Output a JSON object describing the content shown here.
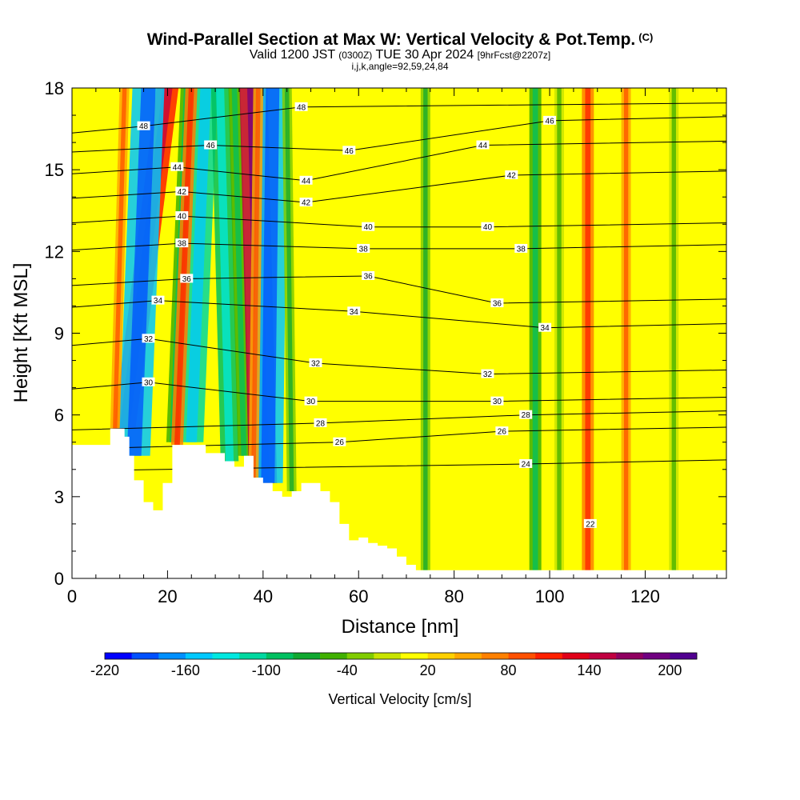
{
  "title": {
    "main": "Wind-Parallel Section at Max W: Vertical Velocity & Pot.Temp.",
    "mark": "(C)",
    "valid_prefix": "Valid 1200 JST",
    "valid_utc": "(0300Z)",
    "valid_date": "TUE 30 Apr 2024",
    "forecast": "[9hrFcst@2207z]",
    "indices": "i,j,k,angle=92,59,24,84"
  },
  "chart_data": {
    "type": "heatmap",
    "xlabel": "Distance [nm]",
    "ylabel": "Height [Kft MSL]",
    "xlim": [
      0,
      137
    ],
    "ylim": [
      0,
      18
    ],
    "xticks": [
      0,
      20,
      40,
      60,
      80,
      100,
      120
    ],
    "yticks": [
      0,
      3,
      6,
      9,
      12,
      15,
      18
    ],
    "colorbar": {
      "label": "Vertical Velocity [cm/s]",
      "range": [
        -220,
        220
      ],
      "step": 20,
      "tick_labels": [
        -220,
        -160,
        -100,
        -40,
        20,
        80,
        140,
        200
      ],
      "colors": [
        "#0000ff",
        "#0050ff",
        "#0090ff",
        "#00c8ff",
        "#00e8e0",
        "#00d8a0",
        "#00c060",
        "#10a830",
        "#40b000",
        "#80cc00",
        "#c8e400",
        "#ffff00",
        "#ffd000",
        "#ffa800",
        "#ff8000",
        "#ff5000",
        "#ff2000",
        "#e00018",
        "#c00040",
        "#900060",
        "#700080",
        "#500090"
      ]
    },
    "terrain_kft": [
      [
        0,
        4.9
      ],
      [
        7,
        4.9
      ],
      [
        8,
        5.5
      ],
      [
        10,
        5.5
      ],
      [
        11,
        5.2
      ],
      [
        12,
        4.5
      ],
      [
        13,
        3.6
      ],
      [
        15,
        2.8
      ],
      [
        17,
        2.5
      ],
      [
        19,
        3.5
      ],
      [
        21,
        4.9
      ],
      [
        26,
        4.9
      ],
      [
        28,
        4.6
      ],
      [
        30,
        4.6
      ],
      [
        32,
        4.3
      ],
      [
        34,
        4.1
      ],
      [
        36,
        4.5
      ],
      [
        38,
        3.7
      ],
      [
        40,
        3.5
      ],
      [
        42,
        3.2
      ],
      [
        44,
        3.0
      ],
      [
        46,
        3.2
      ],
      [
        48,
        3.5
      ],
      [
        50,
        3.5
      ],
      [
        52,
        3.2
      ],
      [
        54,
        2.8
      ],
      [
        56,
        2.0
      ],
      [
        58,
        1.4
      ],
      [
        60,
        1.5
      ],
      [
        62,
        1.3
      ],
      [
        64,
        1.2
      ],
      [
        66,
        1.1
      ],
      [
        68,
        0.8
      ],
      [
        70,
        0.5
      ],
      [
        72,
        0.3
      ],
      [
        137,
        0.3
      ]
    ],
    "vertical_velocity_features": [
      {
        "x_base": 11,
        "z_base": 5.5,
        "x_top": 20,
        "z_top": 18,
        "w": 110
      },
      {
        "x_base": 13,
        "z_base": 4.5,
        "x_top": 16,
        "z_top": 18,
        "w": -160
      },
      {
        "x_base": 9,
        "z_base": 5.5,
        "x_top": 11,
        "z_top": 18,
        "w": 40
      },
      {
        "x_base": 21,
        "z_base": 5.0,
        "x_top": 24,
        "z_top": 18,
        "w": -60
      },
      {
        "x_base": 25,
        "z_base": 5.0,
        "x_top": 28,
        "z_top": 18,
        "w": -120
      },
      {
        "x_base": 22,
        "z_base": 4.9,
        "x_top": 25,
        "z_top": 18,
        "w": 60
      },
      {
        "x_base": 33,
        "z_base": 4.3,
        "x_top": 31,
        "z_top": 18,
        "w": -90
      },
      {
        "x_base": 36,
        "z_base": 4.5,
        "x_top": 34,
        "z_top": 18,
        "w": -60
      },
      {
        "x_base": 40,
        "z_base": 3.5,
        "x_top": 38,
        "z_top": 18,
        "w": 140
      },
      {
        "x_base": 41,
        "z_base": 3.5,
        "x_top": 42,
        "z_top": 18,
        "w": -150
      },
      {
        "x_base": 38,
        "z_base": 3.7,
        "x_top": 39,
        "z_top": 18,
        "w": 50
      },
      {
        "x_base": 46,
        "z_base": 3.2,
        "x_top": 45,
        "z_top": 18,
        "w": -40
      },
      {
        "x_base": 74,
        "z_base": 0.3,
        "x_top": 74,
        "z_top": 18,
        "w": -30
      },
      {
        "x_base": 97,
        "z_base": 0.3,
        "x_top": 97,
        "z_top": 18,
        "w": -60
      },
      {
        "x_base": 102,
        "z_base": 0.3,
        "x_top": 102,
        "z_top": 18,
        "w": -20
      },
      {
        "x_base": 108,
        "z_base": 0.3,
        "x_top": 108,
        "z_top": 18,
        "w": 60
      },
      {
        "x_base": 116,
        "z_base": 0.3,
        "x_top": 116,
        "z_top": 18,
        "w": 40
      },
      {
        "x_base": 126,
        "z_base": 0.3,
        "x_top": 126,
        "z_top": 18,
        "w": -20
      }
    ],
    "isentrope_labels": [
      {
        "value": 48,
        "x": 15,
        "z": 16.6
      },
      {
        "value": 46,
        "x": 29,
        "z": 15.9
      },
      {
        "value": 48,
        "x": 48,
        "z": 17.3
      },
      {
        "value": 46,
        "x": 58,
        "z": 15.7
      },
      {
        "value": 46,
        "x": 100,
        "z": 16.8
      },
      {
        "value": 44,
        "x": 22,
        "z": 15.1
      },
      {
        "value": 44,
        "x": 49,
        "z": 14.6
      },
      {
        "value": 44,
        "x": 86,
        "z": 15.9
      },
      {
        "value": 42,
        "x": 23,
        "z": 14.2
      },
      {
        "value": 42,
        "x": 49,
        "z": 13.8
      },
      {
        "value": 42,
        "x": 92,
        "z": 14.8
      },
      {
        "value": 40,
        "x": 23,
        "z": 13.3
      },
      {
        "value": 40,
        "x": 62,
        "z": 12.9
      },
      {
        "value": 40,
        "x": 87,
        "z": 12.9
      },
      {
        "value": 38,
        "x": 23,
        "z": 12.3
      },
      {
        "value": 38,
        "x": 61,
        "z": 12.1
      },
      {
        "value": 38,
        "x": 94,
        "z": 12.1
      },
      {
        "value": 36,
        "x": 24,
        "z": 11.0
      },
      {
        "value": 36,
        "x": 62,
        "z": 11.1
      },
      {
        "value": 36,
        "x": 89,
        "z": 10.1
      },
      {
        "value": 34,
        "x": 18,
        "z": 10.2
      },
      {
        "value": 34,
        "x": 59,
        "z": 9.8
      },
      {
        "value": 34,
        "x": 99,
        "z": 9.2
      },
      {
        "value": 32,
        "x": 16,
        "z": 8.8
      },
      {
        "value": 32,
        "x": 51,
        "z": 7.9
      },
      {
        "value": 32,
        "x": 87,
        "z": 7.5
      },
      {
        "value": 30,
        "x": 16,
        "z": 7.2
      },
      {
        "value": 30,
        "x": 50,
        "z": 6.5
      },
      {
        "value": 30,
        "x": 89,
        "z": 6.5
      },
      {
        "value": 28,
        "x": 52,
        "z": 5.7
      },
      {
        "value": 28,
        "x": 95,
        "z": 6.0
      },
      {
        "value": 26,
        "x": 56,
        "z": 5.0
      },
      {
        "value": 26,
        "x": 90,
        "z": 5.4
      },
      {
        "value": 24,
        "x": 95,
        "z": 4.2
      },
      {
        "value": 22,
        "x": 108.5,
        "z": 2.0
      }
    ]
  }
}
